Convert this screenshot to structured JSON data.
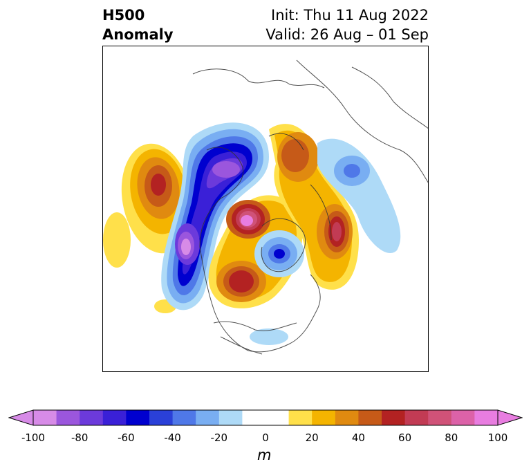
{
  "title": {
    "line1": "H500",
    "line2": "Anomaly",
    "init": "Init: Thu 11 Aug 2022",
    "valid": "Valid: 26 Aug – 01 Sep"
  },
  "colorbar": {
    "unit": "m",
    "ticks": [
      "-100",
      "-80",
      "-60",
      "-40",
      "-20",
      "0",
      "20",
      "40",
      "60",
      "80",
      "100"
    ],
    "colors": [
      "#d78be7",
      "#9b56dd",
      "#6c3adb",
      "#3a20d7",
      "#0000cf",
      "#2a40d8",
      "#4f78e8",
      "#79aef2",
      "#aedaf7",
      "#ffffff",
      "#ffffff",
      "#ffe04a",
      "#f4b400",
      "#e08a10",
      "#c65a18",
      "#b32222",
      "#c23b54",
      "#d05278",
      "#dc62a8",
      "#e87de0"
    ],
    "under_color": "#d78be7",
    "over_color": "#e87de0"
  }
}
